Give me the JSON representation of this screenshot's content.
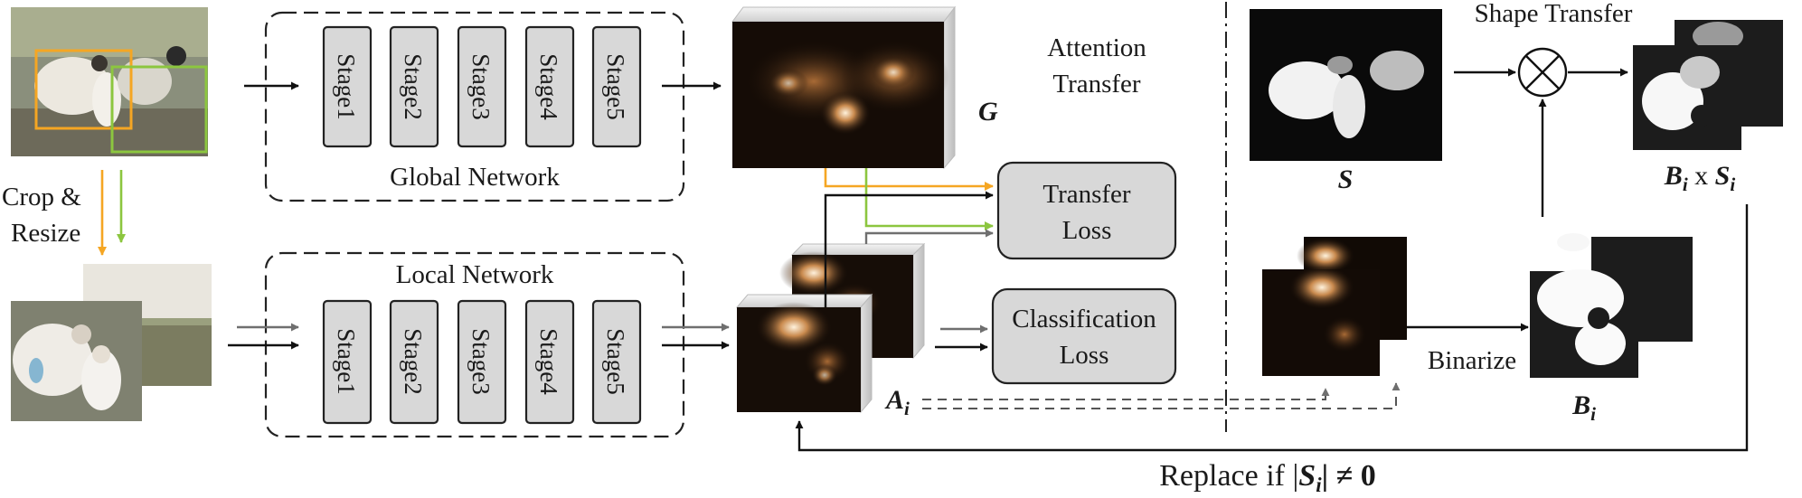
{
  "global_network": {
    "title": "Global Network",
    "stages": [
      "Stage1",
      "Stage2",
      "Stage3",
      "Stage4",
      "Stage5"
    ]
  },
  "local_network": {
    "title": "Local Network",
    "stages": [
      "Stage1",
      "Stage2",
      "Stage3",
      "Stage4",
      "Stage5"
    ]
  },
  "labels": {
    "crop_resize_1": "Crop &",
    "crop_resize_2": "Resize",
    "attention_transfer_1": "Attention",
    "attention_transfer_2": "Transfer",
    "shape_transfer": "Shape Transfer",
    "transfer_loss_1": "Transfer",
    "transfer_loss_2": "Loss",
    "classification_loss_1": "Classification",
    "classification_loss_2": "Loss",
    "binarize": "Binarize",
    "replace_prefix": "Replace if |",
    "replace_s": "S",
    "replace_sub": "i",
    "replace_suffix": "| ≠ 0"
  },
  "symbols": {
    "G": "G",
    "S": "S",
    "A": "A",
    "A_sub": "i",
    "B": "B",
    "B_sub": "i",
    "BxS_b": "B",
    "BxS_b_sub": "i",
    "BxS_x": " x ",
    "BxS_s": "S",
    "BxS_s_sub": "i",
    "multiply": "⊗"
  },
  "colors": {
    "orange": "#f5a623",
    "green": "#8cc63f",
    "box_fill": "#d8d8d8"
  }
}
